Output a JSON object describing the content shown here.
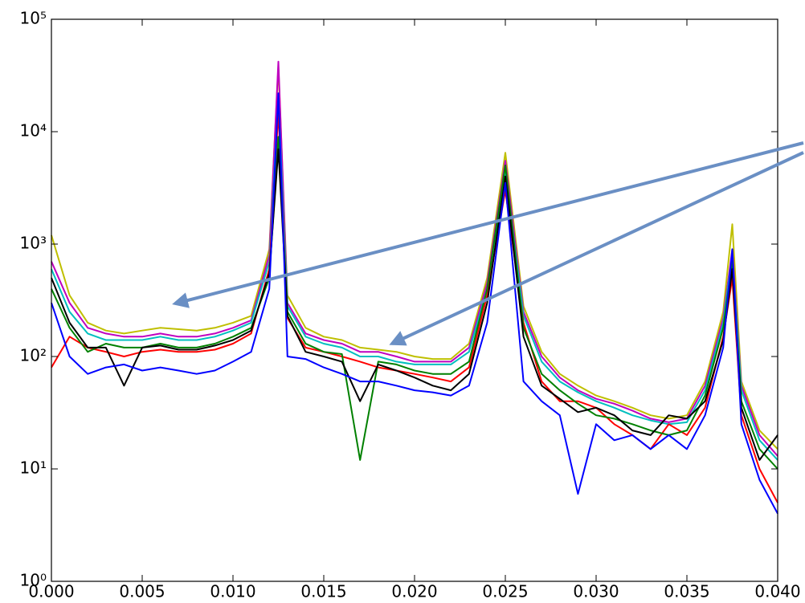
{
  "chart_data": {
    "type": "line",
    "log_y": true,
    "x": [
      0,
      0.001,
      0.002,
      0.003,
      0.004,
      0.005,
      0.006,
      0.007,
      0.008,
      0.009,
      0.01,
      0.011,
      0.012,
      0.0125,
      0.013,
      0.014,
      0.015,
      0.016,
      0.017,
      0.018,
      0.019,
      0.02,
      0.021,
      0.022,
      0.023,
      0.024,
      0.025,
      0.026,
      0.027,
      0.028,
      0.029,
      0.03,
      0.031,
      0.032,
      0.033,
      0.034,
      0.035,
      0.036,
      0.037,
      0.0375,
      0.038,
      0.039,
      0.04
    ],
    "series": [
      {
        "color": "#bfbf00",
        "values": [
          1200,
          350,
          200,
          170,
          160,
          170,
          180,
          175,
          170,
          180,
          200,
          230,
          900,
          38000,
          350,
          180,
          150,
          140,
          120,
          115,
          110,
          100,
          95,
          95,
          130,
          500,
          6500,
          280,
          110,
          70,
          55,
          45,
          40,
          35,
          30,
          28,
          30,
          60,
          250,
          1500,
          60,
          22,
          15
        ]
      },
      {
        "color": "#bf00bf",
        "values": [
          700,
          300,
          180,
          160,
          150,
          150,
          160,
          150,
          150,
          160,
          180,
          210,
          800,
          42000,
          300,
          160,
          140,
          130,
          110,
          110,
          100,
          90,
          90,
          90,
          120,
          450,
          5500,
          250,
          100,
          65,
          50,
          42,
          38,
          33,
          28,
          26,
          28,
          55,
          220,
          900,
          55,
          20,
          13
        ]
      },
      {
        "color": "#00bfbf",
        "values": [
          600,
          250,
          160,
          140,
          140,
          140,
          150,
          140,
          140,
          150,
          170,
          200,
          700,
          20000,
          280,
          150,
          130,
          120,
          100,
          100,
          90,
          85,
          85,
          85,
          110,
          400,
          4500,
          230,
          90,
          60,
          48,
          40,
          35,
          30,
          27,
          25,
          26,
          50,
          200,
          800,
          50,
          18,
          12
        ]
      },
      {
        "color": "#ff0000",
        "values": [
          80,
          150,
          120,
          110,
          100,
          110,
          115,
          110,
          110,
          115,
          130,
          160,
          600,
          15000,
          220,
          120,
          110,
          100,
          90,
          80,
          75,
          70,
          65,
          60,
          80,
          350,
          3000,
          200,
          60,
          40,
          40,
          35,
          25,
          20,
          15,
          25,
          20,
          35,
          150,
          500,
          30,
          10,
          5
        ]
      },
      {
        "color": "#008000",
        "values": [
          400,
          180,
          110,
          130,
          120,
          120,
          130,
          120,
          120,
          130,
          150,
          180,
          500,
          9000,
          250,
          130,
          110,
          105,
          12,
          90,
          85,
          75,
          70,
          70,
          90,
          400,
          5000,
          180,
          70,
          50,
          38,
          30,
          28,
          25,
          22,
          20,
          22,
          45,
          180,
          700,
          40,
          15,
          10
        ]
      },
      {
        "color": "#000000",
        "values": [
          500,
          200,
          120,
          120,
          55,
          120,
          125,
          115,
          115,
          125,
          140,
          170,
          550,
          7000,
          230,
          110,
          100,
          90,
          40,
          85,
          75,
          65,
          55,
          50,
          70,
          300,
          4000,
          150,
          55,
          42,
          32,
          35,
          30,
          22,
          20,
          30,
          28,
          40,
          140,
          600,
          35,
          12,
          20
        ]
      },
      {
        "color": "#0000ff",
        "values": [
          300,
          100,
          70,
          80,
          85,
          75,
          80,
          75,
          70,
          75,
          90,
          110,
          400,
          22000,
          100,
          95,
          80,
          70,
          60,
          60,
          55,
          50,
          48,
          45,
          55,
          200,
          3500,
          60,
          40,
          30,
          6,
          25,
          18,
          20,
          15,
          20,
          15,
          30,
          120,
          900,
          25,
          8,
          4
        ]
      }
    ],
    "xlim": [
      0,
      0.04
    ],
    "ylim": [
      1,
      100000
    ],
    "xticks": [
      {
        "value": 0,
        "label": "0.000"
      },
      {
        "value": 0.005,
        "label": "0.005"
      },
      {
        "value": 0.01,
        "label": "0.010"
      },
      {
        "value": 0.015,
        "label": "0.015"
      },
      {
        "value": 0.02,
        "label": "0.020"
      },
      {
        "value": 0.025,
        "label": "0.025"
      },
      {
        "value": 0.03,
        "label": "0.030"
      },
      {
        "value": 0.035,
        "label": "0.035"
      },
      {
        "value": 0.04,
        "label": "0.040"
      }
    ],
    "yticks": [
      {
        "value": 1,
        "label": "10⁰"
      },
      {
        "value": 10,
        "label": "10¹"
      },
      {
        "value": 100,
        "label": "10²"
      },
      {
        "value": 1000,
        "label": "10³"
      },
      {
        "value": 10000,
        "label": "10⁴"
      },
      {
        "value": 100000,
        "label": "10⁵"
      }
    ]
  }
}
